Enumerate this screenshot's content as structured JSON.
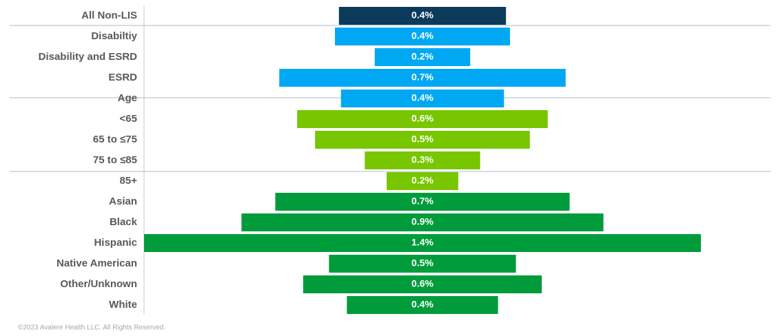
{
  "chart_data": {
    "type": "funnel-bar",
    "categories": [
      "All Non-LIS",
      "Disabiltiy",
      "Disability and ESRD",
      "ESRD",
      "Age",
      "<65",
      "65 to ≤75",
      "75 to ≤85",
      "85+",
      "Asian",
      "Black",
      "Hispanic",
      "Native American",
      "Other/Unknown",
      "White"
    ],
    "values": [
      0.42,
      0.44,
      0.24,
      0.72,
      0.41,
      0.63,
      0.54,
      0.29,
      0.18,
      0.74,
      0.91,
      1.4,
      0.47,
      0.6,
      0.38
    ],
    "value_labels": [
      "0.4%",
      "0.4%",
      "0.2%",
      "0.7%",
      "0.4%",
      "0.6%",
      "0.5%",
      "0.3%",
      "0.2%",
      "0.7%",
      "0.9%",
      "1.4%",
      "0.5%",
      "0.6%",
      "0.4%"
    ],
    "colors": [
      "#0b3a5b",
      "#00a8f3",
      "#00a8f3",
      "#00a8f3",
      "#00a8f3",
      "#77c600",
      "#77c600",
      "#77c600",
      "#77c600",
      "#009c3b",
      "#009c3b",
      "#009c3b",
      "#009c3b",
      "#009c3b",
      "#009c3b"
    ],
    "footnote": "©2023 Avalere Health LLC.  All Rights Reserved."
  }
}
